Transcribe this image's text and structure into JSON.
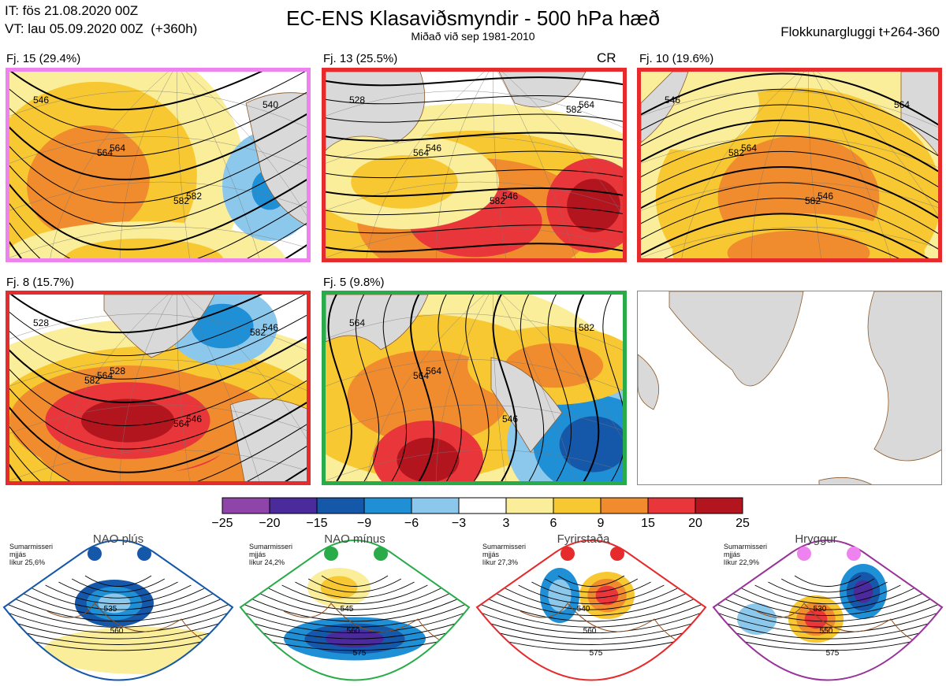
{
  "header": {
    "it_line": "IT: fös 21.08.2020 00Z",
    "vt_line": "VT: lau 05.09.2020 00Z  (+360h)",
    "title": "EC-ENS Klasaviðsmyndir - 500 hPa hæð",
    "subtitle": "Miðað við sep 1981-2010",
    "window": "Flokkunargluggi t+264-360"
  },
  "panels": [
    {
      "label": "Fj. 15 (29.4%)",
      "border_color": "#ee82ee",
      "extra": "",
      "contours": [
        "546",
        "564",
        "582",
        "540",
        "564",
        "582"
      ]
    },
    {
      "label": "Fj. 13 (25.5%)",
      "border_color": "#e52b2b",
      "extra": "CR",
      "contours": [
        "528",
        "546",
        "546",
        "564",
        "564",
        "582",
        "582"
      ]
    },
    {
      "label": "Fj. 10 (19.6%)",
      "border_color": "#e52b2b",
      "extra": "",
      "contours": [
        "546",
        "564",
        "546",
        "564",
        "582",
        "582"
      ]
    },
    {
      "label": "Fj. 8 (15.7%)",
      "border_color": "#e52b2b",
      "extra": "",
      "contours": [
        "528",
        "528",
        "546",
        "546",
        "564",
        "564",
        "582",
        "582"
      ]
    },
    {
      "label": "Fj. 5 (9.8%)",
      "border_color": "#2aab4a",
      "extra": "",
      "contours": [
        "564",
        "564",
        "546",
        "582",
        "564"
      ]
    }
  ],
  "chart_data": [
    {
      "type": "heatmap",
      "title": "EC-ENS Klasaviðsmyndir - 500 hPa hæð",
      "colorbar": {
        "ticks": [
          "−25",
          "−20",
          "−15",
          "−9",
          "−6",
          "−3",
          "3",
          "6",
          "9",
          "15",
          "20",
          "25"
        ],
        "bounds": [
          -25,
          -20,
          -15,
          -9,
          -6,
          -3,
          3,
          6,
          9,
          15,
          20,
          25
        ],
        "colors": [
          "#8e44a8",
          "#4b2a9c",
          "#1557a8",
          "#1f8fd6",
          "#8cc8ec",
          "#ffffff",
          "#fbee9a",
          "#f7c832",
          "#f08c2e",
          "#e8363a",
          "#b3151f"
        ]
      },
      "clusters": [
        {
          "name": "Fj. 15",
          "percent": 29.4
        },
        {
          "name": "Fj. 13",
          "percent": 25.5
        },
        {
          "name": "Fj. 10",
          "percent": 19.6
        },
        {
          "name": "Fj. 8",
          "percent": 15.7
        },
        {
          "name": "Fj. 5",
          "percent": 9.8
        }
      ]
    }
  ],
  "regimes": [
    {
      "name": "NAO plús",
      "info": [
        "Sumarmisseri",
        "mjjás",
        "líkur 25,6%"
      ],
      "color": "#1557a8",
      "contours": [
        "535",
        "560"
      ],
      "dot": "#1557a8"
    },
    {
      "name": "NAO mínus",
      "info": [
        "Sumarmisseri",
        "mjjás",
        "líkur 24,2%"
      ],
      "color": "#2aab4a",
      "contours": [
        "545",
        "560",
        "575"
      ],
      "dot": "#2aab4a"
    },
    {
      "name": "Fyrirstaða",
      "info": [
        "Sumarmisseri",
        "mjjás",
        "líkur 27,3%"
      ],
      "color": "#e52b2b",
      "contours": [
        "540",
        "560",
        "575"
      ],
      "dot": "#e52b2b"
    },
    {
      "name": "Hryggur",
      "info": [
        "Sumarmisseri",
        "mjjás",
        "líkur 22,9%"
      ],
      "color": "#993399",
      "contours": [
        "530",
        "550",
        "575"
      ],
      "dot": "#ee82ee"
    }
  ]
}
